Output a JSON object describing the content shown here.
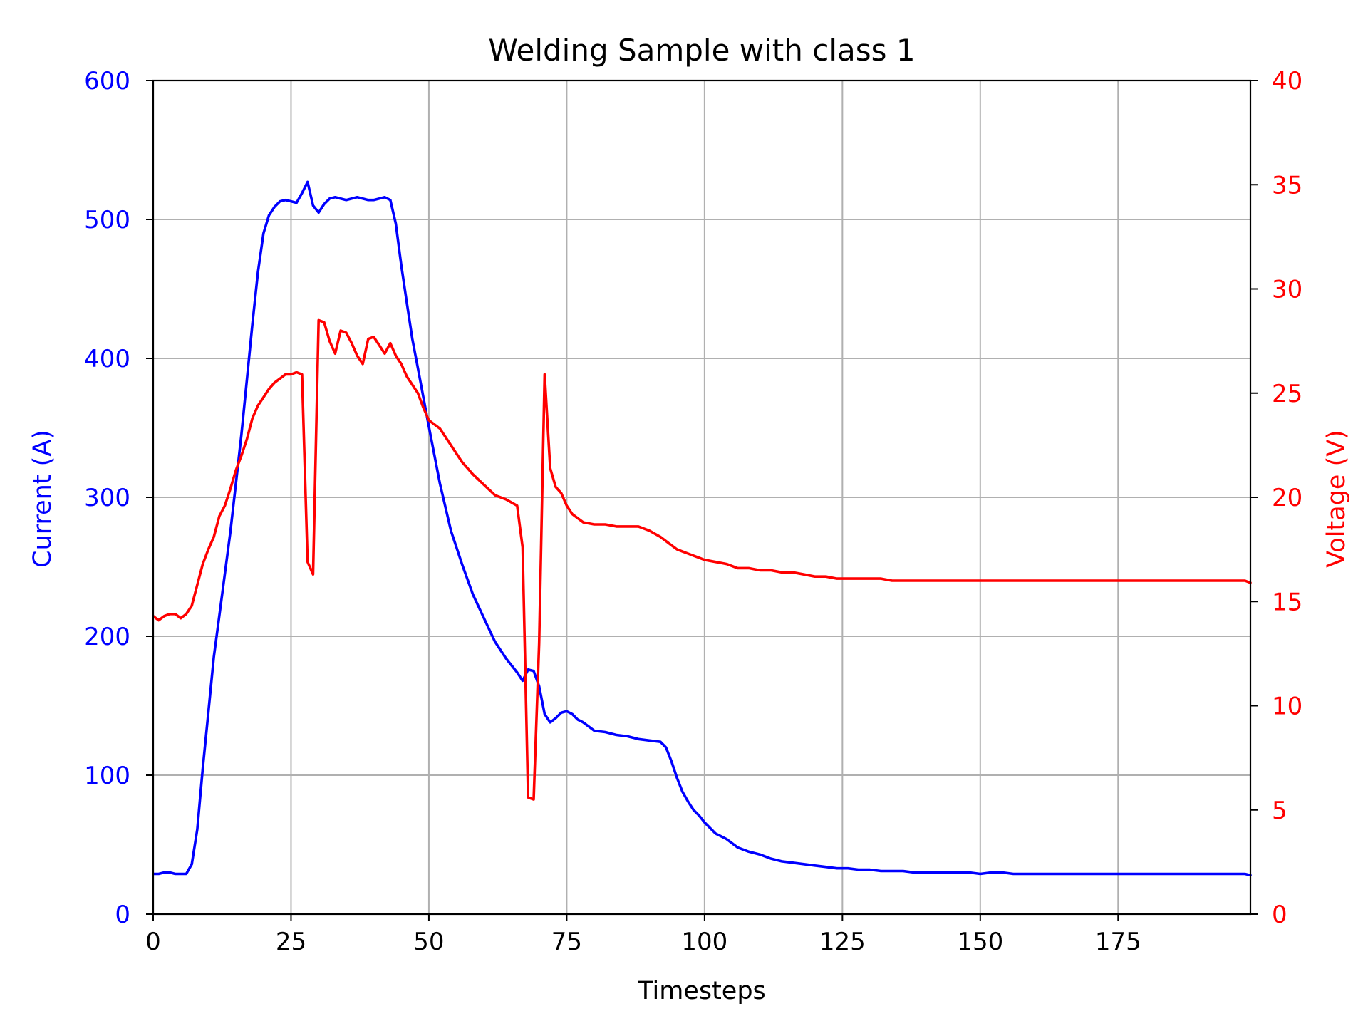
{
  "chart_data": {
    "type": "line",
    "title": "Welding Sample with class 1",
    "xlabel": "Timesteps",
    "ylabel_left": "Current (A)",
    "ylabel_right": "Voltage (V)",
    "xlim": [
      0,
      199
    ],
    "ylim_left": [
      0,
      600
    ],
    "ylim_right": [
      0,
      40
    ],
    "grid": true,
    "x_ticks": [
      0,
      25,
      50,
      75,
      100,
      125,
      150,
      175
    ],
    "y_ticks_left": [
      0,
      100,
      200,
      300,
      400,
      500,
      600
    ],
    "y_ticks_right": [
      0,
      5,
      10,
      15,
      20,
      25,
      30,
      35,
      40
    ],
    "colors": {
      "current": "#0000ff",
      "voltage": "#ff0000",
      "grid": "#b0b0b0",
      "axis": "#000000"
    },
    "series": [
      {
        "key": "current",
        "axis": "left",
        "x": [
          0,
          1,
          2,
          3,
          4,
          5,
          6,
          7,
          8,
          9,
          10,
          11,
          12,
          13,
          14,
          15,
          16,
          17,
          18,
          19,
          20,
          21,
          22,
          23,
          24,
          25,
          26,
          27,
          28,
          29,
          30,
          31,
          32,
          33,
          34,
          35,
          36,
          37,
          38,
          39,
          40,
          41,
          42,
          43,
          44,
          45,
          46,
          47,
          48,
          49,
          50,
          52,
          54,
          56,
          58,
          60,
          62,
          64,
          66,
          67,
          68,
          69,
          70,
          71,
          72,
          73,
          74,
          75,
          76,
          77,
          78,
          80,
          82,
          84,
          86,
          88,
          90,
          92,
          93,
          94,
          95,
          96,
          97,
          98,
          99,
          100,
          102,
          104,
          106,
          108,
          110,
          112,
          114,
          116,
          118,
          120,
          122,
          124,
          126,
          128,
          130,
          132,
          134,
          136,
          138,
          140,
          142,
          144,
          146,
          148,
          150,
          152,
          154,
          156,
          158,
          160,
          162,
          164,
          166,
          168,
          170,
          172,
          174,
          176,
          178,
          180,
          182,
          184,
          186,
          188,
          190,
          192,
          194,
          196,
          198,
          199
        ],
        "values": [
          29,
          29,
          30,
          30,
          29,
          29,
          29,
          36,
          61,
          105,
          145,
          185,
          215,
          245,
          275,
          310,
          345,
          385,
          425,
          462,
          490,
          503,
          509,
          513,
          514,
          513,
          512,
          519,
          527,
          510,
          505,
          511,
          515,
          516,
          515,
          514,
          515,
          516,
          515,
          514,
          514,
          515,
          516,
          514,
          497,
          467,
          440,
          414,
          393,
          372,
          351,
          310,
          276,
          252,
          230,
          213,
          196,
          184,
          174,
          168,
          176,
          175,
          164,
          144,
          138,
          141,
          145,
          146,
          144,
          140,
          138,
          132,
          131,
          129,
          128,
          126,
          125,
          124,
          120,
          110,
          98,
          88,
          81,
          75,
          71,
          66,
          58,
          54,
          48,
          45,
          43,
          40,
          38,
          37,
          36,
          35,
          34,
          33,
          33,
          32,
          32,
          31,
          31,
          31,
          30,
          30,
          30,
          30,
          30,
          30,
          29,
          30,
          30,
          29,
          29,
          29,
          29,
          29,
          29,
          29,
          29,
          29,
          29,
          29,
          29,
          29,
          29,
          29,
          29,
          29,
          29,
          29,
          29,
          29,
          29,
          28
        ]
      },
      {
        "key": "voltage",
        "axis": "right",
        "x": [
          0,
          1,
          2,
          3,
          4,
          5,
          6,
          7,
          8,
          9,
          10,
          11,
          12,
          13,
          14,
          15,
          16,
          17,
          18,
          19,
          20,
          21,
          22,
          23,
          24,
          25,
          26,
          27,
          28,
          29,
          30,
          31,
          32,
          33,
          34,
          35,
          36,
          37,
          38,
          39,
          40,
          41,
          42,
          43,
          44,
          45,
          46,
          47,
          48,
          49,
          50,
          52,
          54,
          56,
          58,
          60,
          62,
          64,
          66,
          67,
          68,
          69,
          70,
          71,
          72,
          73,
          74,
          75,
          76,
          77,
          78,
          80,
          82,
          84,
          86,
          88,
          90,
          92,
          93,
          94,
          95,
          96,
          97,
          98,
          99,
          100,
          102,
          104,
          106,
          108,
          110,
          112,
          114,
          116,
          118,
          120,
          122,
          124,
          126,
          128,
          130,
          132,
          134,
          136,
          138,
          140,
          142,
          144,
          146,
          148,
          150,
          152,
          154,
          156,
          158,
          160,
          162,
          164,
          166,
          168,
          170,
          172,
          174,
          176,
          178,
          180,
          182,
          184,
          186,
          188,
          190,
          192,
          194,
          196,
          198,
          199
        ],
        "values": [
          14.3,
          14.1,
          14.3,
          14.4,
          14.4,
          14.2,
          14.4,
          14.8,
          15.8,
          16.8,
          17.5,
          18.1,
          19.1,
          19.6,
          20.4,
          21.3,
          22.0,
          22.8,
          23.8,
          24.4,
          24.8,
          25.2,
          25.5,
          25.7,
          25.9,
          25.9,
          26.0,
          25.9,
          16.9,
          16.3,
          28.5,
          28.4,
          27.5,
          26.9,
          28.0,
          27.9,
          27.4,
          26.8,
          26.4,
          27.6,
          27.7,
          27.3,
          26.9,
          27.4,
          26.8,
          26.4,
          25.8,
          25.4,
          25.0,
          24.3,
          23.7,
          23.3,
          22.5,
          21.7,
          21.1,
          20.6,
          20.1,
          19.9,
          19.6,
          17.6,
          5.6,
          5.5,
          13.0,
          25.9,
          21.4,
          20.5,
          20.2,
          19.6,
          19.2,
          19.0,
          18.8,
          18.7,
          18.7,
          18.6,
          18.6,
          18.6,
          18.4,
          18.1,
          17.9,
          17.7,
          17.5,
          17.4,
          17.3,
          17.2,
          17.1,
          17.0,
          16.9,
          16.8,
          16.6,
          16.6,
          16.5,
          16.5,
          16.4,
          16.4,
          16.3,
          16.2,
          16.2,
          16.1,
          16.1,
          16.1,
          16.1,
          16.1,
          16.0,
          16.0,
          16.0,
          16.0,
          16.0,
          16.0,
          16.0,
          16.0,
          16.0,
          16.0,
          16.0,
          16.0,
          16.0,
          16.0,
          16.0,
          16.0,
          16.0,
          16.0,
          16.0,
          16.0,
          16.0,
          16.0,
          16.0,
          16.0,
          16.0,
          16.0,
          16.0,
          16.0,
          16.0,
          16.0,
          16.0,
          16.0,
          16.0,
          15.9
        ]
      }
    ]
  }
}
